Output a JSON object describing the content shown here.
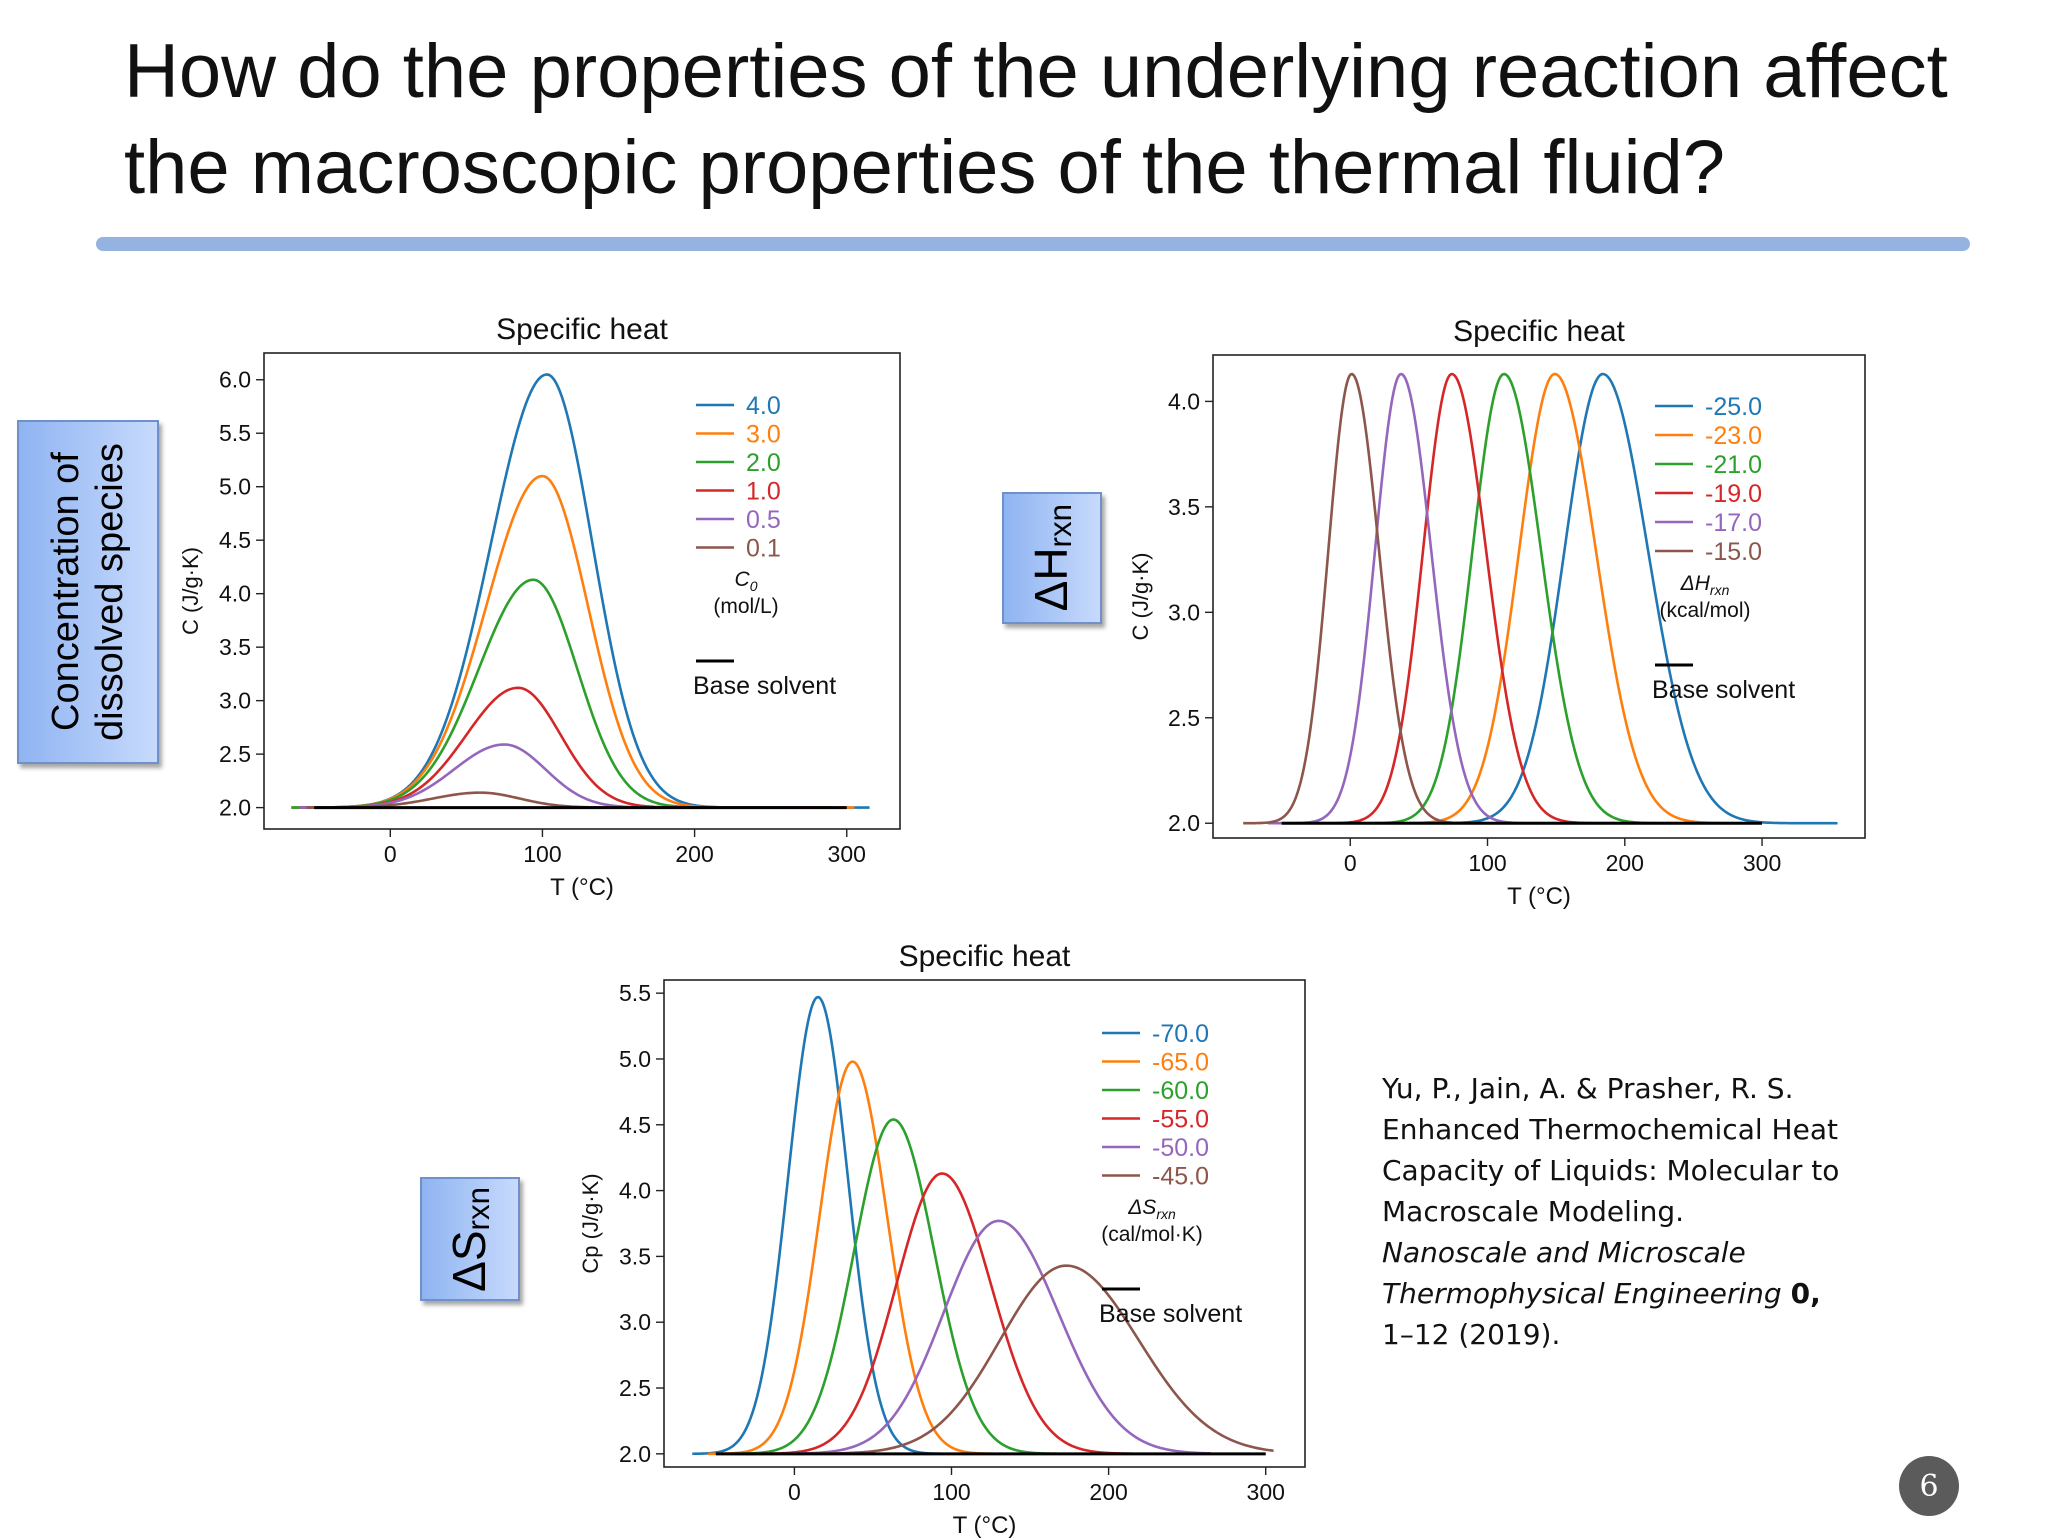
{
  "slide": {
    "title": "How do the properties of the underlying reaction affect the macroscopic properties of the thermal fluid?",
    "page_number": "6",
    "side_labels": {
      "concentration": "Concentration of dissolved species",
      "delta_h_main": "ΔH",
      "delta_h_sub": "rxn",
      "delta_s_main": "ΔS",
      "delta_s_sub": "rxn"
    },
    "citation": {
      "line1": "Yu, P., Jain, A. & Prasher, R. S.",
      "line2": "Enhanced Thermochemical Heat",
      "line3": "Capacity of Liquids: Molecular to",
      "line4": "Macroscale Modeling.",
      "journal_line1": "Nanoscale and Microscale",
      "journal_line2": "Thermophysical Engineering",
      "volume": "0,",
      "pages": "1–12 (2019)."
    }
  },
  "chart_data": [
    {
      "type": "line",
      "title": "Specific heat",
      "xlabel": "T (°C)",
      "ylabel": "C (J/g·K)",
      "xlim": [
        -83,
        335
      ],
      "ylim": [
        1.8,
        6.25
      ],
      "xticks": [
        0,
        100,
        200,
        300
      ],
      "yticks": [
        2.0,
        2.5,
        3.0,
        3.5,
        4.0,
        4.5,
        5.0,
        5.5,
        6.0
      ],
      "ytick_decimals": 1,
      "grid": false,
      "legend_position": "top-right",
      "legend_title": "C",
      "legend_title_sub": "0",
      "legend_unit": "(mol/L)",
      "base_label": "Base solvent",
      "base_value": 2.0,
      "base_range": [
        -50,
        300
      ],
      "series": [
        {
          "name": "4.0",
          "color": "#1f77b4",
          "x_range": [
            -65,
            315
          ],
          "peak_x": 103,
          "peak_y": 6.05,
          "sigma_left": 37,
          "sigma_right": 30
        },
        {
          "name": "3.0",
          "color": "#ff7f0e",
          "x_range": [
            -65,
            305
          ],
          "peak_x": 100,
          "peak_y": 5.1,
          "sigma_left": 37,
          "sigma_right": 30
        },
        {
          "name": "2.0",
          "color": "#2ca02c",
          "x_range": [
            -65,
            290
          ],
          "peak_x": 94,
          "peak_y": 4.13,
          "sigma_left": 36,
          "sigma_right": 29
        },
        {
          "name": "1.0",
          "color": "#d62728",
          "x_range": [
            -60,
            280
          ],
          "peak_x": 84,
          "peak_y": 3.12,
          "sigma_left": 34,
          "sigma_right": 28
        },
        {
          "name": "0.5",
          "color": "#9467bd",
          "x_range": [
            -60,
            270
          ],
          "peak_x": 75,
          "peak_y": 2.59,
          "sigma_left": 33,
          "sigma_right": 27
        },
        {
          "name": "0.1",
          "color": "#8c564b",
          "x_range": [
            -55,
            250
          ],
          "peak_x": 59,
          "peak_y": 2.14,
          "sigma_left": 31,
          "sigma_right": 26
        }
      ]
    },
    {
      "type": "line",
      "title": "Specific heat",
      "xlabel": "T (°C)",
      "ylabel": "C (J/g·K)",
      "xlim": [
        -100,
        375
      ],
      "ylim": [
        1.93,
        4.22
      ],
      "xticks": [
        0,
        100,
        200,
        300
      ],
      "yticks": [
        2.0,
        2.5,
        3.0,
        3.5,
        4.0
      ],
      "ytick_decimals": 1,
      "grid": false,
      "legend_position": "top-right",
      "legend_title": "ΔH",
      "legend_title_sub": "rxn",
      "legend_unit": "(kcal/mol)",
      "base_label": "Base solvent",
      "base_value": 2.0,
      "base_range": [
        -50,
        300
      ],
      "series": [
        {
          "name": "-25.0",
          "color": "#1f77b4",
          "x_range": [
            35,
            355
          ],
          "peak_x": 184,
          "peak_y": 4.13,
          "sigma_left": 28,
          "sigma_right": 33
        },
        {
          "name": "-23.0",
          "color": "#ff7f0e",
          "x_range": [
            10,
            300
          ],
          "peak_x": 149,
          "peak_y": 4.13,
          "sigma_left": 26,
          "sigma_right": 30
        },
        {
          "name": "-21.0",
          "color": "#2ca02c",
          "x_range": [
            -20,
            265
          ],
          "peak_x": 112,
          "peak_y": 4.13,
          "sigma_left": 23,
          "sigma_right": 27
        },
        {
          "name": "-19.0",
          "color": "#d62728",
          "x_range": [
            -40,
            220
          ],
          "peak_x": 74,
          "peak_y": 4.13,
          "sigma_left": 21,
          "sigma_right": 25
        },
        {
          "name": "-17.0",
          "color": "#9467bd",
          "x_range": [
            -60,
            180
          ],
          "peak_x": 37,
          "peak_y": 4.13,
          "sigma_left": 19,
          "sigma_right": 22
        },
        {
          "name": "-15.0",
          "color": "#8c564b",
          "x_range": [
            -78,
            130
          ],
          "peak_x": 1,
          "peak_y": 4.13,
          "sigma_left": 17,
          "sigma_right": 20
        }
      ]
    },
    {
      "type": "line",
      "title": "Specific heat",
      "xlabel": "T (°C)",
      "ylabel": "Cp (J/g·K)",
      "xlim": [
        -83,
        325
      ],
      "ylim": [
        1.9,
        5.6
      ],
      "xticks": [
        0,
        100,
        200,
        300
      ],
      "yticks": [
        2.0,
        2.5,
        3.0,
        3.5,
        4.0,
        4.5,
        5.0,
        5.5
      ],
      "ytick_decimals": 1,
      "grid": false,
      "legend_position": "top-right",
      "legend_title": "ΔS",
      "legend_title_sub": "rxn",
      "legend_unit": "(cal/mol·K)",
      "base_label": "Base solvent",
      "base_value": 2.0,
      "base_range": [
        -50,
        300
      ],
      "series": [
        {
          "name": "-70.0",
          "color": "#1f77b4",
          "x_range": [
            -65,
            95
          ],
          "peak_x": 15,
          "peak_y": 5.47,
          "sigma_left": 19,
          "sigma_right": 19
        },
        {
          "name": "-65.0",
          "color": "#ff7f0e",
          "x_range": [
            -55,
            130
          ],
          "peak_x": 37,
          "peak_y": 4.98,
          "sigma_left": 21,
          "sigma_right": 22
        },
        {
          "name": "-60.0",
          "color": "#2ca02c",
          "x_range": [
            -45,
            170
          ],
          "peak_x": 63,
          "peak_y": 4.54,
          "sigma_left": 25,
          "sigma_right": 26
        },
        {
          "name": "-55.0",
          "color": "#d62728",
          "x_range": [
            -40,
            215
          ],
          "peak_x": 94,
          "peak_y": 4.13,
          "sigma_left": 29,
          "sigma_right": 31
        },
        {
          "name": "-50.0",
          "color": "#9467bd",
          "x_range": [
            -40,
            265
          ],
          "peak_x": 130,
          "peak_y": 3.77,
          "sigma_left": 35,
          "sigma_right": 38
        },
        {
          "name": "-45.0",
          "color": "#8c564b",
          "x_range": [
            -40,
            305
          ],
          "peak_x": 173,
          "peak_y": 3.43,
          "sigma_left": 42,
          "sigma_right": 46
        }
      ]
    }
  ]
}
